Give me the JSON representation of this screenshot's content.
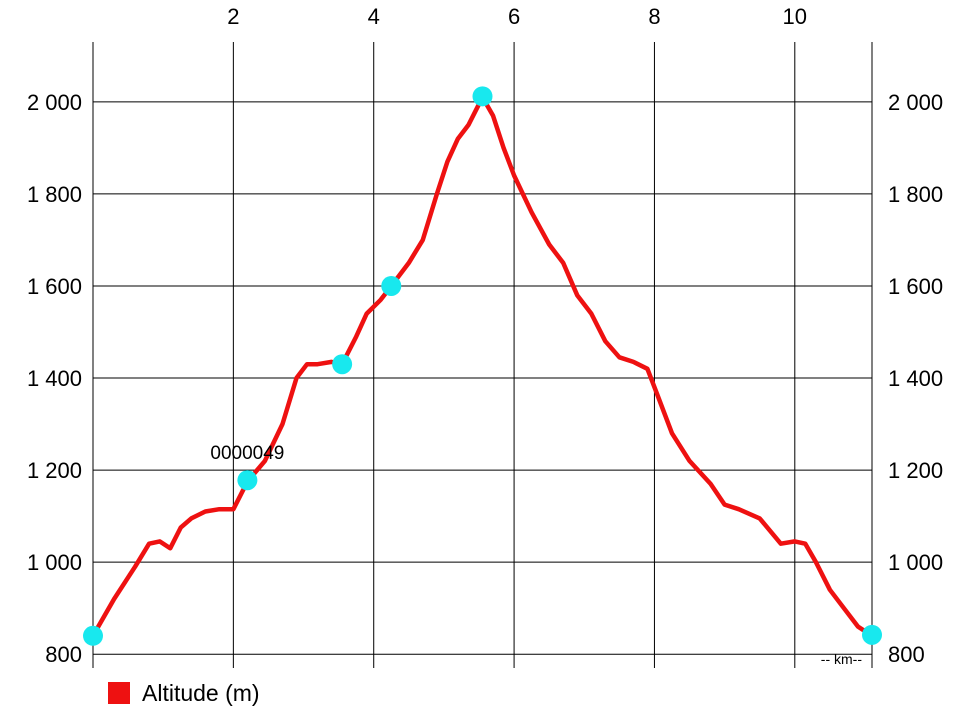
{
  "chart_data": {
    "type": "line",
    "x_unit_label": "-- km--",
    "x_ticks": [
      2,
      4,
      6,
      8,
      10
    ],
    "y_ticks": [
      800,
      1000,
      1200,
      1400,
      1600,
      1800,
      2000
    ],
    "y_tick_labels": [
      "800",
      "1 000",
      "1 200",
      "1 400",
      "1 600",
      "1 800",
      "2 000"
    ],
    "xlim": [
      0,
      11.1
    ],
    "ylim": [
      770,
      2130
    ],
    "grid": true,
    "legend_position": "bottom-left",
    "series": [
      {
        "name": "Altitude (m)",
        "color": "#ee1111",
        "x": [
          0,
          0.3,
          0.6,
          0.8,
          0.95,
          1.1,
          1.25,
          1.4,
          1.6,
          1.8,
          2.0,
          2.2,
          2.45,
          2.7,
          2.9,
          3.05,
          3.2,
          3.4,
          3.55,
          3.75,
          3.9,
          4.1,
          4.25,
          4.5,
          4.7,
          4.9,
          5.05,
          5.2,
          5.35,
          5.55,
          5.7,
          5.85,
          6.0,
          6.25,
          6.5,
          6.7,
          6.9,
          7.1,
          7.3,
          7.5,
          7.7,
          7.9,
          8.05,
          8.25,
          8.5,
          8.8,
          9.0,
          9.2,
          9.5,
          9.8,
          10.0,
          10.15,
          10.3,
          10.5,
          10.7,
          10.9,
          11.1
        ],
        "y": [
          840,
          920,
          990,
          1040,
          1045,
          1030,
          1075,
          1095,
          1110,
          1115,
          1115,
          1175,
          1220,
          1300,
          1400,
          1430,
          1430,
          1435,
          1430,
          1490,
          1540,
          1570,
          1600,
          1650,
          1700,
          1800,
          1870,
          1920,
          1950,
          2010,
          1970,
          1900,
          1840,
          1760,
          1690,
          1650,
          1580,
          1540,
          1480,
          1445,
          1435,
          1420,
          1360,
          1280,
          1220,
          1170,
          1125,
          1115,
          1095,
          1040,
          1045,
          1040,
          1000,
          940,
          900,
          860,
          840
        ]
      }
    ],
    "markers": [
      {
        "x": 0,
        "y": 840,
        "label": ""
      },
      {
        "x": 2.2,
        "y": 1178,
        "label": "0000049"
      },
      {
        "x": 3.55,
        "y": 1430,
        "label": ""
      },
      {
        "x": 4.25,
        "y": 1600,
        "label": ""
      },
      {
        "x": 5.55,
        "y": 2012,
        "label": ""
      },
      {
        "x": 11.1,
        "y": 842,
        "label": ""
      }
    ],
    "marker_color": "#18e8ee"
  }
}
